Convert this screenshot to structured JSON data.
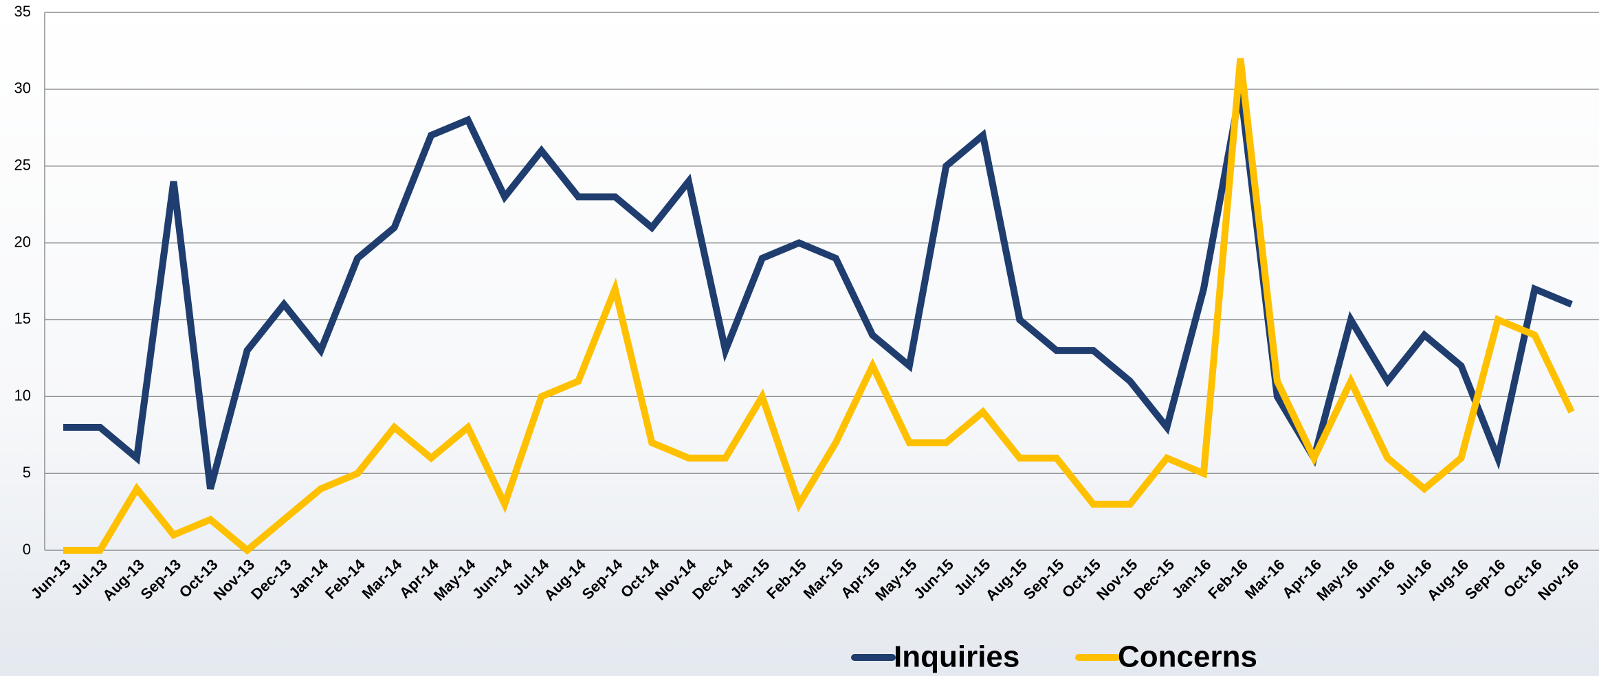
{
  "chart_data": {
    "type": "line",
    "categories": [
      "Jun-13",
      "Jul-13",
      "Aug-13",
      "Sep-13",
      "Oct-13",
      "Nov-13",
      "Dec-13",
      "Jan-14",
      "Feb-14",
      "Mar-14",
      "Apr-14",
      "May-14",
      "Jun-14",
      "Jul-14",
      "Aug-14",
      "Sep-14",
      "Oct-14",
      "Nov-14",
      "Dec-14",
      "Jan-15",
      "Feb-15",
      "Mar-15",
      "Apr-15",
      "May-15",
      "Jun-15",
      "Jul-15",
      "Aug-15",
      "Sep-15",
      "Oct-15",
      "Nov-15",
      "Dec-15",
      "Jan-16",
      "Feb-16",
      "Mar-16",
      "Apr-16",
      "May-16",
      "Jun-16",
      "Jul-16",
      "Aug-16",
      "Sep-16",
      "Oct-16",
      "Nov-16"
    ],
    "series": [
      {
        "name": "Inquiries",
        "color": "#1f3d6e",
        "values": [
          8,
          8,
          6,
          24,
          4,
          13,
          16,
          13,
          19,
          21,
          27,
          28,
          23,
          26,
          23,
          23,
          21,
          24,
          13,
          19,
          20,
          19,
          14,
          12,
          25,
          27,
          15,
          13,
          13,
          11,
          8,
          17,
          30,
          10,
          6,
          15,
          11,
          14,
          12,
          6,
          17,
          16
        ]
      },
      {
        "name": "Concerns",
        "color": "#ffc000",
        "values": [
          0,
          0,
          4,
          1,
          2,
          0,
          2,
          4,
          5,
          8,
          6,
          8,
          3,
          10,
          11,
          17,
          7,
          6,
          6,
          10,
          3,
          7,
          12,
          7,
          7,
          9,
          6,
          6,
          3,
          3,
          6,
          5,
          32,
          11,
          6,
          11,
          6,
          4,
          6,
          15,
          14,
          9
        ]
      }
    ],
    "ylim": [
      0,
      35
    ],
    "yticks": [
      0,
      5,
      10,
      15,
      20,
      25,
      30,
      35
    ],
    "grid": true,
    "legend": "bottom"
  }
}
